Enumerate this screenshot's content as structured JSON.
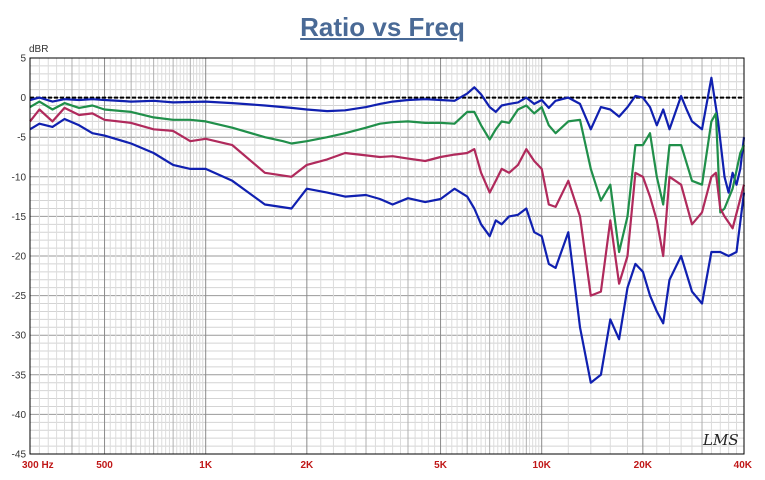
{
  "chart_data": {
    "type": "line",
    "title": "Ratio vs Freq",
    "ylabel": "dBR",
    "xscale": "log",
    "xlim": [
      300,
      40000
    ],
    "ylim": [
      -45,
      5
    ],
    "yticks": [
      5,
      0,
      -5,
      -10,
      -15,
      -20,
      -25,
      -30,
      -35,
      -40,
      -45
    ],
    "xticks": [
      {
        "value": 300,
        "label": "300 Hz"
      },
      {
        "value": 500,
        "label": "500"
      },
      {
        "value": 1000,
        "label": "1K"
      },
      {
        "value": 2000,
        "label": "2K"
      },
      {
        "value": 5000,
        "label": "5K"
      },
      {
        "value": 10000,
        "label": "10K"
      },
      {
        "value": 20000,
        "label": "20K"
      },
      {
        "value": 40000,
        "label": "40K"
      }
    ],
    "grid": true,
    "watermark": "LMS",
    "series": [
      {
        "color": "#000000",
        "style": "dashed",
        "points": [
          [
            300,
            0
          ],
          [
            40000,
            0
          ]
        ]
      },
      {
        "color": "#1020b0",
        "points": [
          [
            300,
            -0.3
          ],
          [
            320,
            0
          ],
          [
            350,
            -0.5
          ],
          [
            380,
            -0.2
          ],
          [
            420,
            -0.3
          ],
          [
            460,
            -0.2
          ],
          [
            500,
            -0.3
          ],
          [
            600,
            -0.5
          ],
          [
            700,
            -0.4
          ],
          [
            800,
            -0.6
          ],
          [
            1000,
            -0.5
          ],
          [
            1200,
            -0.7
          ],
          [
            1500,
            -1.0
          ],
          [
            1800,
            -1.3
          ],
          [
            2000,
            -1.5
          ],
          [
            2300,
            -1.7
          ],
          [
            2600,
            -1.6
          ],
          [
            3000,
            -1.2
          ],
          [
            3300,
            -0.8
          ],
          [
            3600,
            -0.5
          ],
          [
            4000,
            -0.3
          ],
          [
            4500,
            -0.2
          ],
          [
            5000,
            -0.3
          ],
          [
            5500,
            -0.4
          ],
          [
            6000,
            0.5
          ],
          [
            6300,
            1.3
          ],
          [
            6600,
            0.4
          ],
          [
            7000,
            -1.2
          ],
          [
            7300,
            -1.8
          ],
          [
            7600,
            -1.0
          ],
          [
            8000,
            -0.8
          ],
          [
            8500,
            -0.6
          ],
          [
            9000,
            0.0
          ],
          [
            9500,
            -0.8
          ],
          [
            10000,
            -0.3
          ],
          [
            10500,
            -1.3
          ],
          [
            11000,
            -0.4
          ],
          [
            12000,
            0.0
          ],
          [
            13000,
            -0.8
          ],
          [
            14000,
            -4.0
          ],
          [
            15000,
            -1.2
          ],
          [
            16000,
            -1.5
          ],
          [
            17000,
            -2.4
          ],
          [
            18000,
            -1.2
          ],
          [
            19000,
            0.2
          ],
          [
            20000,
            0.0
          ],
          [
            21000,
            -1.2
          ],
          [
            22000,
            -3.5
          ],
          [
            23000,
            -1.5
          ],
          [
            24000,
            -4.0
          ],
          [
            26000,
            0.2
          ],
          [
            27000,
            -1.5
          ],
          [
            28000,
            -3.0
          ],
          [
            30000,
            -4.0
          ],
          [
            32000,
            2.5
          ],
          [
            33500,
            -3.0
          ],
          [
            35000,
            -10.0
          ],
          [
            36000,
            -12.0
          ],
          [
            37000,
            -9.5
          ],
          [
            38000,
            -11.0
          ],
          [
            39000,
            -9.0
          ],
          [
            40000,
            -5.0
          ]
        ]
      },
      {
        "color": "#208f4a",
        "points": [
          [
            300,
            -1.2
          ],
          [
            320,
            -0.5
          ],
          [
            350,
            -1.5
          ],
          [
            380,
            -0.7
          ],
          [
            420,
            -1.3
          ],
          [
            460,
            -1.0
          ],
          [
            500,
            -1.5
          ],
          [
            600,
            -1.8
          ],
          [
            700,
            -2.5
          ],
          [
            800,
            -2.8
          ],
          [
            900,
            -2.8
          ],
          [
            1000,
            -3.0
          ],
          [
            1200,
            -3.8
          ],
          [
            1500,
            -5.0
          ],
          [
            1700,
            -5.5
          ],
          [
            1800,
            -5.8
          ],
          [
            2000,
            -5.5
          ],
          [
            2300,
            -5.0
          ],
          [
            2600,
            -4.5
          ],
          [
            3000,
            -3.8
          ],
          [
            3300,
            -3.3
          ],
          [
            3600,
            -3.1
          ],
          [
            4000,
            -3.0
          ],
          [
            4500,
            -3.2
          ],
          [
            5000,
            -3.2
          ],
          [
            5500,
            -3.3
          ],
          [
            6000,
            -1.8
          ],
          [
            6300,
            -1.8
          ],
          [
            6600,
            -3.5
          ],
          [
            7000,
            -5.3
          ],
          [
            7300,
            -4.0
          ],
          [
            7600,
            -3.0
          ],
          [
            8000,
            -3.2
          ],
          [
            8500,
            -1.5
          ],
          [
            9000,
            -1.0
          ],
          [
            9500,
            -2.0
          ],
          [
            10000,
            -1.2
          ],
          [
            10500,
            -3.5
          ],
          [
            11000,
            -4.5
          ],
          [
            12000,
            -3.0
          ],
          [
            13000,
            -2.8
          ],
          [
            14000,
            -9.0
          ],
          [
            15000,
            -13.0
          ],
          [
            16000,
            -11.0
          ],
          [
            17000,
            -19.5
          ],
          [
            18000,
            -15.0
          ],
          [
            19000,
            -6.0
          ],
          [
            20000,
            -6.0
          ],
          [
            21000,
            -4.5
          ],
          [
            22000,
            -10.0
          ],
          [
            23000,
            -13.5
          ],
          [
            24000,
            -6.0
          ],
          [
            26000,
            -6.0
          ],
          [
            28000,
            -10.5
          ],
          [
            30000,
            -11.0
          ],
          [
            32000,
            -3.0
          ],
          [
            33000,
            -2.0
          ],
          [
            34000,
            -14.5
          ],
          [
            35000,
            -14.0
          ],
          [
            37000,
            -11.5
          ],
          [
            39000,
            -7.0
          ],
          [
            40000,
            -6.0
          ]
        ]
      },
      {
        "color": "#b02a5c",
        "points": [
          [
            300,
            -3.0
          ],
          [
            320,
            -1.5
          ],
          [
            350,
            -3.0
          ],
          [
            380,
            -1.3
          ],
          [
            420,
            -2.2
          ],
          [
            460,
            -2.0
          ],
          [
            500,
            -2.8
          ],
          [
            600,
            -3.2
          ],
          [
            700,
            -4.0
          ],
          [
            800,
            -4.2
          ],
          [
            900,
            -5.5
          ],
          [
            1000,
            -5.2
          ],
          [
            1200,
            -6.0
          ],
          [
            1500,
            -9.5
          ],
          [
            1800,
            -10.0
          ],
          [
            2000,
            -8.5
          ],
          [
            2300,
            -7.8
          ],
          [
            2600,
            -7.0
          ],
          [
            3000,
            -7.3
          ],
          [
            3300,
            -7.5
          ],
          [
            3600,
            -7.4
          ],
          [
            4000,
            -7.7
          ],
          [
            4500,
            -8.0
          ],
          [
            5000,
            -7.5
          ],
          [
            5500,
            -7.2
          ],
          [
            6000,
            -7.0
          ],
          [
            6300,
            -6.5
          ],
          [
            6600,
            -9.5
          ],
          [
            7000,
            -12.0
          ],
          [
            7300,
            -10.5
          ],
          [
            7600,
            -9.0
          ],
          [
            8000,
            -9.5
          ],
          [
            8500,
            -8.5
          ],
          [
            9000,
            -6.5
          ],
          [
            9500,
            -8.0
          ],
          [
            10000,
            -9.0
          ],
          [
            10500,
            -13.5
          ],
          [
            11000,
            -13.8
          ],
          [
            12000,
            -10.5
          ],
          [
            13000,
            -15.0
          ],
          [
            14000,
            -25.0
          ],
          [
            15000,
            -24.5
          ],
          [
            16000,
            -15.5
          ],
          [
            17000,
            -23.5
          ],
          [
            18000,
            -20.0
          ],
          [
            19000,
            -9.5
          ],
          [
            20000,
            -10.0
          ],
          [
            21000,
            -12.5
          ],
          [
            22000,
            -15.5
          ],
          [
            23000,
            -20.0
          ],
          [
            24000,
            -10.0
          ],
          [
            26000,
            -11.0
          ],
          [
            28000,
            -16.0
          ],
          [
            30000,
            -14.5
          ],
          [
            32000,
            -10.0
          ],
          [
            33000,
            -9.5
          ],
          [
            34000,
            -14.0
          ],
          [
            35000,
            -15.0
          ],
          [
            37000,
            -16.5
          ],
          [
            40000,
            -11.0
          ]
        ]
      },
      {
        "color": "#1020b0",
        "points": [
          [
            300,
            -4.0
          ],
          [
            320,
            -3.3
          ],
          [
            350,
            -3.7
          ],
          [
            380,
            -2.7
          ],
          [
            420,
            -3.5
          ],
          [
            460,
            -4.5
          ],
          [
            500,
            -4.8
          ],
          [
            600,
            -5.8
          ],
          [
            700,
            -7.0
          ],
          [
            800,
            -8.5
          ],
          [
            900,
            -9.0
          ],
          [
            1000,
            -9.0
          ],
          [
            1200,
            -10.5
          ],
          [
            1500,
            -13.5
          ],
          [
            1800,
            -14.0
          ],
          [
            2000,
            -11.5
          ],
          [
            2300,
            -12.0
          ],
          [
            2600,
            -12.5
          ],
          [
            3000,
            -12.3
          ],
          [
            3300,
            -12.8
          ],
          [
            3600,
            -13.5
          ],
          [
            4000,
            -12.7
          ],
          [
            4500,
            -13.2
          ],
          [
            5000,
            -12.8
          ],
          [
            5500,
            -11.5
          ],
          [
            6000,
            -12.5
          ],
          [
            6300,
            -14.0
          ],
          [
            6600,
            -16.0
          ],
          [
            7000,
            -17.5
          ],
          [
            7300,
            -15.5
          ],
          [
            7600,
            -16.0
          ],
          [
            8000,
            -15.0
          ],
          [
            8500,
            -14.8
          ],
          [
            9000,
            -14.0
          ],
          [
            9500,
            -17.0
          ],
          [
            10000,
            -17.5
          ],
          [
            10500,
            -21.0
          ],
          [
            11000,
            -21.5
          ],
          [
            12000,
            -17.0
          ],
          [
            13000,
            -29.0
          ],
          [
            14000,
            -36.0
          ],
          [
            15000,
            -35.0
          ],
          [
            16000,
            -28.0
          ],
          [
            17000,
            -30.5
          ],
          [
            18000,
            -24.0
          ],
          [
            19000,
            -21.0
          ],
          [
            20000,
            -22.0
          ],
          [
            21000,
            -25.0
          ],
          [
            22000,
            -27.0
          ],
          [
            23000,
            -28.5
          ],
          [
            24000,
            -23.0
          ],
          [
            26000,
            -20.0
          ],
          [
            28000,
            -24.5
          ],
          [
            30000,
            -26.0
          ],
          [
            32000,
            -19.5
          ],
          [
            34000,
            -19.5
          ],
          [
            36000,
            -20.0
          ],
          [
            38000,
            -19.5
          ],
          [
            40000,
            -12.0
          ]
        ]
      }
    ]
  }
}
